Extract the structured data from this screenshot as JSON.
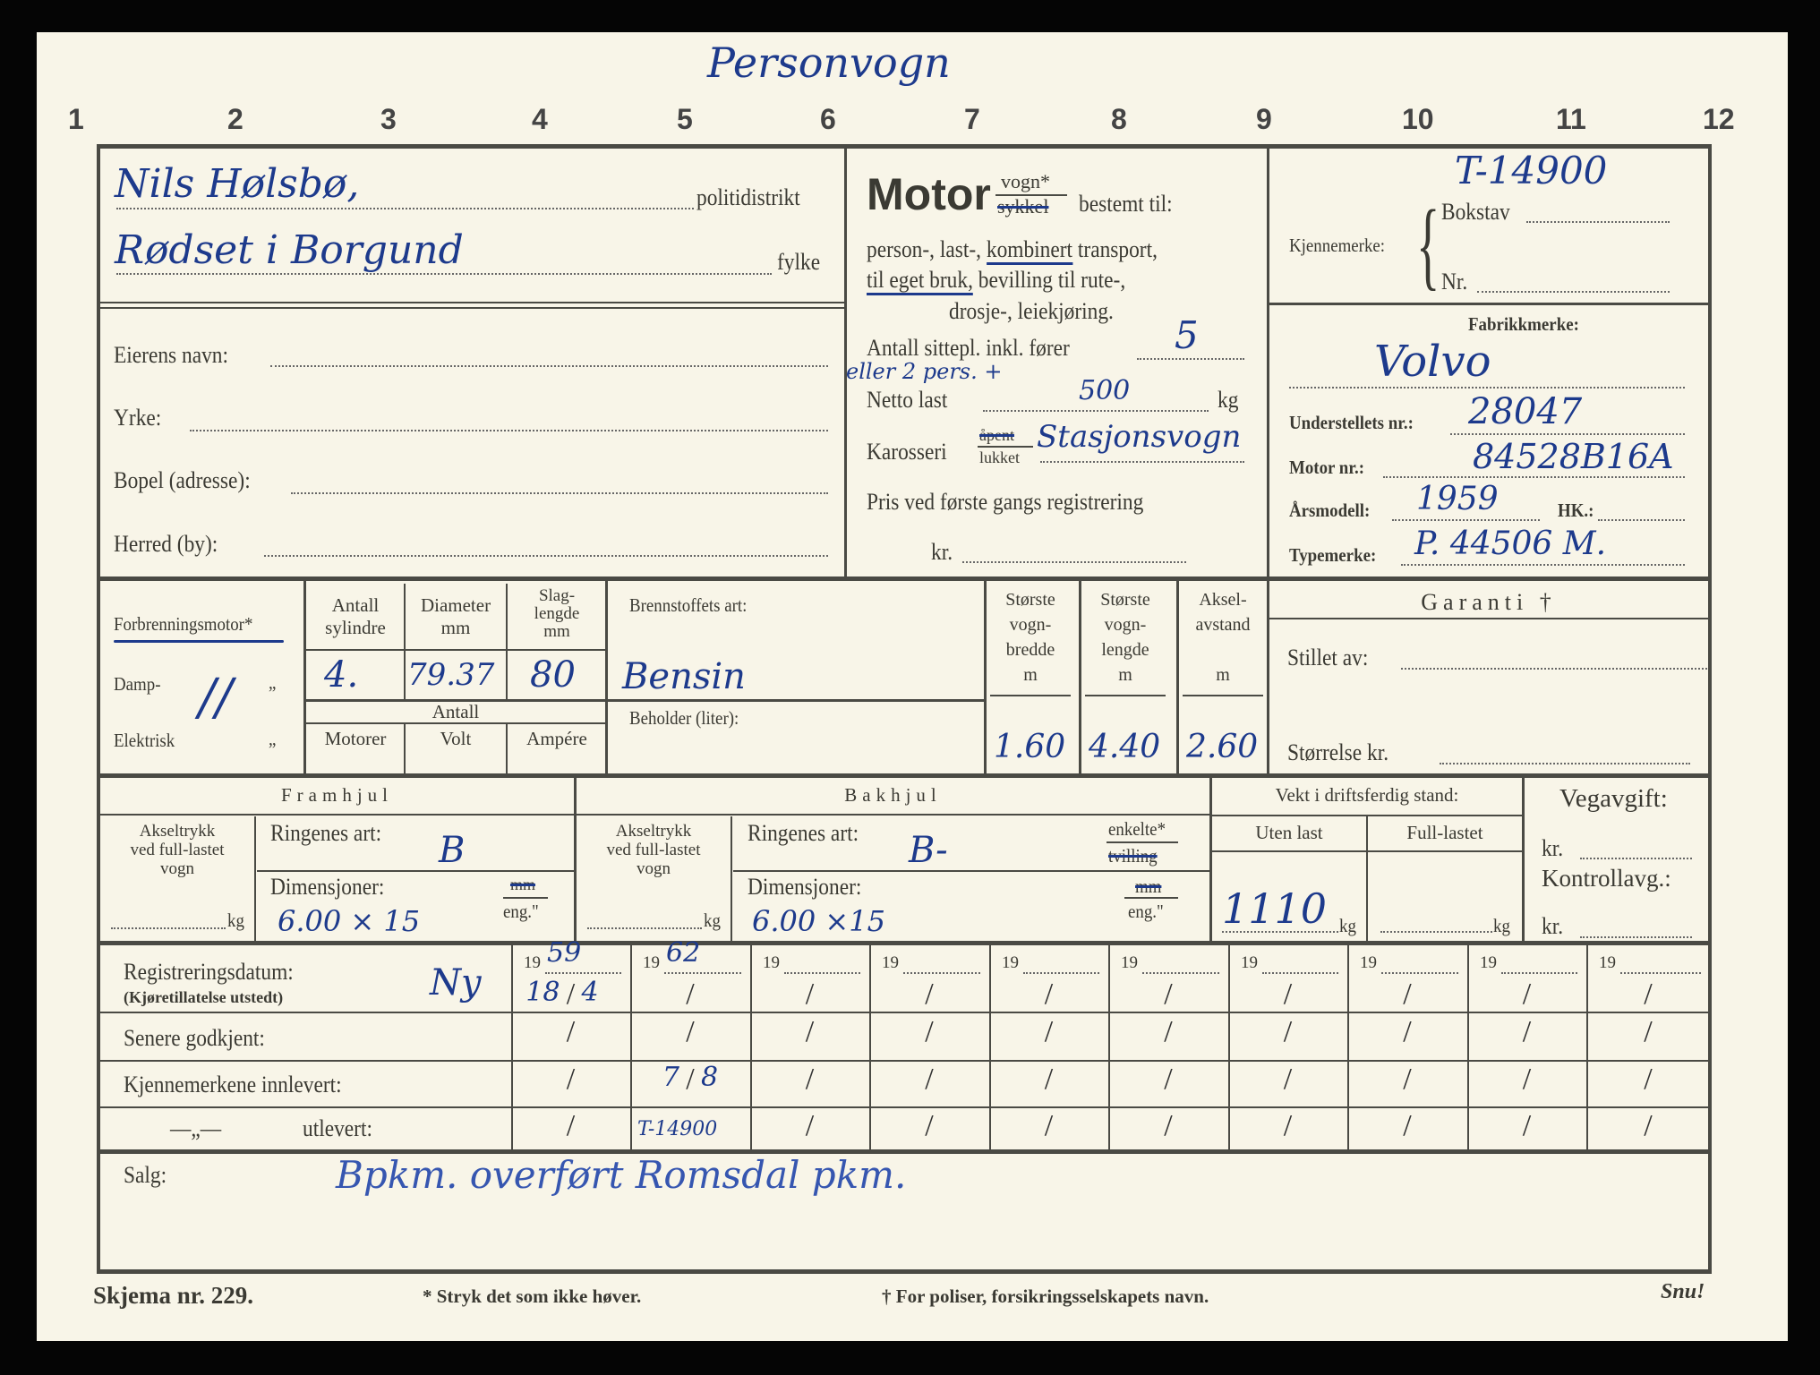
{
  "header": {
    "handwritten_title": "Personvogn",
    "column_numbers": [
      "1",
      "2",
      "3",
      "4",
      "5",
      "6",
      "7",
      "8",
      "9",
      "10",
      "11",
      "12"
    ]
  },
  "district": {
    "politidistrikt_value": "Nils Hølsbø,",
    "politidistrikt_label": "politidistrikt",
    "fylke_value": "Rødset i Borgund",
    "fylke_label": "fylke"
  },
  "owner": {
    "name_label": "Eierens navn:",
    "occupation_label": "Yrke:",
    "address_label": "Bopel (adresse):",
    "municipality_label": "Herred (by):"
  },
  "purpose": {
    "motor_label": "Motor",
    "vogn_option": "vogn*",
    "sykkel_option": "sykkel",
    "bestemt_label": "bestemt til:",
    "line1_a": "person-, last-, ",
    "line1_b": "kombinert",
    "line1_c": " transport,",
    "line2_a": "til eget bruk,",
    "line2_b": " bevilling til rute-,",
    "line3": "drosje-, leiekjøring.",
    "seats_label": "Antall sittepl. inkl. fører",
    "seats_value": "5",
    "alt_note": "eller 2 pers. +",
    "net_load_label": "Netto last",
    "net_load_value": "500",
    "kg": "kg",
    "body_label": "Karosseri",
    "body_open": "åpent",
    "body_closed": "lukket",
    "body_value": "Stasjonsvogn",
    "price_label": "Pris ved første gangs registrering",
    "kr_label": "kr."
  },
  "registration_mark": {
    "value": "T-14900",
    "label": "Kjennemerke:",
    "bokstav_label": "Bokstav",
    "nr_label": "Nr."
  },
  "vehicle": {
    "make_label": "Fabrikkmerke:",
    "make_value": "Volvo",
    "chassis_label": "Understellets nr.:",
    "chassis_value": "28047",
    "engine_label": "Motor nr.:",
    "engine_value": "84528B16A",
    "year_label": "Årsmodell:",
    "year_value": "1959",
    "hp_label": "HK.:",
    "type_label": "Typemerke:",
    "type_value": "P. 44506 M."
  },
  "engine": {
    "combustion_label": "Forbrenningsmotor*",
    "steam_label": "Damp-",
    "electric_label": "Elektrisk",
    "ditto": "„",
    "cross_mark": "//",
    "cylinders_label_1": "Antall",
    "cylinders_label_2": "sylindre",
    "cylinders_value": "4.",
    "diameter_label_1": "Diameter",
    "diameter_label_2": "mm",
    "diameter_value": "79.37",
    "stroke_label_1": "Slag-",
    "stroke_label_2": "lengde",
    "stroke_label_3": "mm",
    "stroke_value": "80",
    "antall_label": "Antall",
    "motors_label": "Motorer",
    "volt_label": "Volt",
    "ampere_label": "Ampére",
    "fuel_label": "Brennstoffets art:",
    "fuel_value": "Bensin",
    "tank_label": "Beholder (liter):"
  },
  "dimensions": {
    "width_label": [
      "Største",
      "vogn-",
      "bredde",
      "m"
    ],
    "width_value": "1.60",
    "length_label": [
      "Største",
      "vogn-",
      "lengde",
      "m"
    ],
    "length_value": "4.40",
    "wheelbase_label": [
      "Aksel-",
      "avstand",
      "",
      "m"
    ],
    "wheelbase_value": "2.60"
  },
  "guarantee": {
    "title": "Garanti †",
    "issued_by_label": "Stillet av:",
    "amount_label": "Størrelse kr."
  },
  "front_wheels": {
    "title": "Framhjul",
    "axle_load_label": [
      "Akseltrykk",
      "ved full-lastet",
      "vogn"
    ],
    "kg": "kg",
    "rings_label": "Ringenes art:",
    "rings_value": "B",
    "dims_label": "Dimensjoner:",
    "dims_value": "6.00 × 15",
    "unit_mm": "mm",
    "unit_eng": "eng.\""
  },
  "rear_wheels": {
    "title": "Bakhjul",
    "axle_load_label": [
      "Akseltrykk",
      "ved full-lastet",
      "vogn"
    ],
    "kg": "kg",
    "rings_label": "Ringenes art:",
    "rings_value": "B-",
    "single": "enkelte*",
    "twin": "tvilling",
    "dims_label": "Dimensjoner:",
    "dims_value": "6.00 ×15",
    "unit_mm": "mm",
    "unit_eng": "eng.\""
  },
  "weight": {
    "title": "Vekt i driftsferdig stand:",
    "empty_label": "Uten last",
    "empty_value": "1110",
    "full_label": "Full-lastet",
    "kg": "kg"
  },
  "fees": {
    "road_tax_label": "Vegavgift:",
    "kr": "kr.",
    "control_label": "Kontrollavg.:"
  },
  "registration_table": {
    "row_labels": [
      "Registreringsdatum:",
      "Senere godkjent:",
      "Kjennemerkene innlevert:",
      "utlevert:"
    ],
    "row1_sub": "(Kjøretillatelse utstedt)",
    "ditto_mark": "—„—",
    "new_note": "Ny",
    "year_prefix": "19",
    "columns": [
      {
        "year": "59",
        "cells": [
          [
            "18",
            "4"
          ],
          [
            "",
            ""
          ],
          [
            "",
            ""
          ],
          [
            "",
            ""
          ]
        ]
      },
      {
        "year": "62",
        "cells": [
          [
            "",
            ""
          ],
          [
            "",
            ""
          ],
          [
            "7",
            "8"
          ],
          [
            "T-14900",
            ""
          ]
        ]
      },
      {
        "year": "",
        "cells": []
      },
      {
        "year": "",
        "cells": []
      },
      {
        "year": "",
        "cells": []
      },
      {
        "year": "",
        "cells": []
      },
      {
        "year": "",
        "cells": []
      },
      {
        "year": "",
        "cells": []
      },
      {
        "year": "",
        "cells": []
      },
      {
        "year": "",
        "cells": []
      }
    ]
  },
  "sale": {
    "label": "Salg:",
    "value": "Bpkm. overført Romsdal pkm."
  },
  "footer": {
    "form_number": "Skjema nr. 229.",
    "note_star": "* Stryk det som ikke høver.",
    "note_dagger": "† For poliser, forsikringsselskapets navn.",
    "turn": "Snu!"
  }
}
